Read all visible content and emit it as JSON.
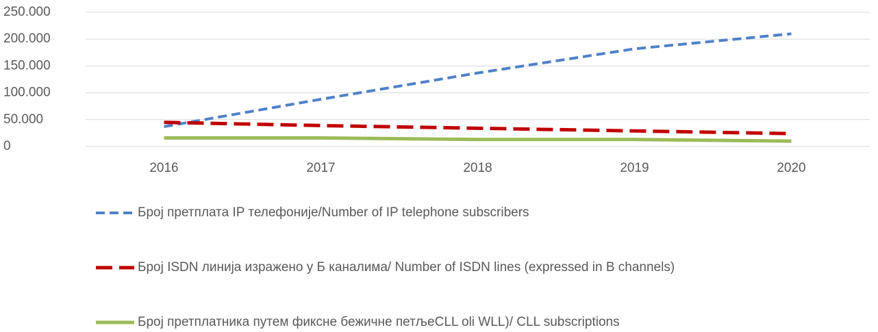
{
  "chart_data": {
    "type": "line",
    "categories": [
      "2016",
      "2017",
      "2018",
      "2019",
      "2020"
    ],
    "series": [
      {
        "name": "Број претплата IP телефоније/Number of IP telephone subscribers",
        "color": "#4f81c7",
        "dash": "dashed",
        "values": [
          37000,
          88000,
          137000,
          182000,
          210000
        ]
      },
      {
        "name": "Број ISDN линија изражено у Б каналима/ Number of ISDN lines (expressed in B channels)",
        "color": "#c00000",
        "dash": "long-dashed",
        "values": [
          45000,
          39000,
          34000,
          29000,
          24000
        ]
      },
      {
        "name": "Број претплатника путем фиксне бежичне петљеCLL oli WLL)/ CLL subscriptions",
        "color": "#9bbb59",
        "dash": "solid",
        "values": [
          16000,
          16000,
          13000,
          13000,
          10000
        ]
      }
    ],
    "ylim": [
      0,
      250000
    ],
    "yticks": [
      0,
      {
        "value": 50000,
        "label": "50.000"
      },
      {
        "value": 100000,
        "label": "100.000"
      },
      {
        "value": 150000,
        "label": "150.000"
      },
      {
        "value": 200000,
        "label": "200.000"
      },
      {
        "value": 250000,
        "label": "250.000"
      }
    ],
    "grid": true,
    "legend": "bottom"
  }
}
